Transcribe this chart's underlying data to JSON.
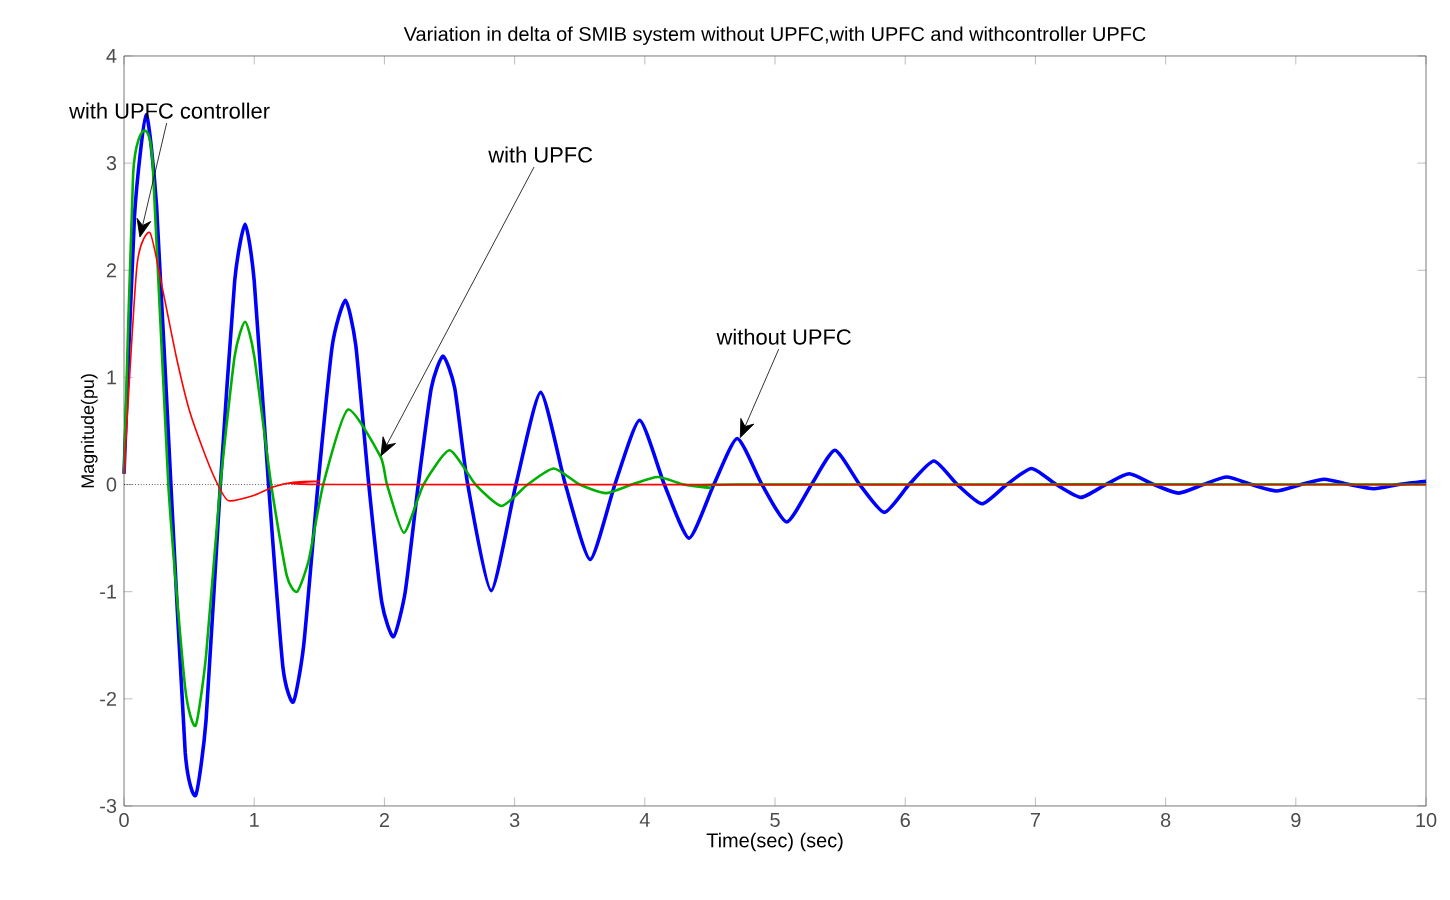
{
  "chart_data": {
    "type": "line",
    "title": "Variation in delta of SMIB system without UPFC,with UPFC and withcontroller UPFC",
    "xlabel": "Time(sec) (sec)",
    "ylabel": "Magnitude(pu)",
    "xlim": [
      0,
      10
    ],
    "ylim": [
      -3,
      4
    ],
    "xticks": [
      0,
      1,
      2,
      3,
      4,
      5,
      6,
      7,
      8,
      9,
      10
    ],
    "yticks": [
      -3,
      -2,
      -1,
      0,
      1,
      2,
      3,
      4
    ],
    "grid": false,
    "marker": "none",
    "line_style": "solid",
    "series": [
      {
        "color": "#0000ff",
        "x": [
          0,
          0.08,
          0.17,
          0.25,
          0.36,
          0.47,
          0.55,
          0.63,
          0.74,
          0.85,
          0.93,
          1.0,
          1.11,
          1.22,
          1.3,
          1.38,
          1.49,
          1.6,
          1.7,
          1.78,
          1.88,
          1.98,
          2.07,
          2.16,
          2.26,
          2.36,
          2.45,
          2.54,
          2.64,
          2.82,
          3.01,
          3.2,
          3.39,
          3.58,
          3.77,
          3.96,
          4.15,
          4.34,
          4.53,
          4.71,
          4.9,
          5.09,
          5.28,
          5.46,
          5.65,
          5.84,
          6.03,
          6.22,
          6.4,
          6.59,
          6.78,
          6.97,
          7.16,
          7.35,
          7.54,
          7.72,
          7.91,
          8.1,
          8.29,
          8.47,
          8.66,
          8.85,
          9.04,
          9.22,
          9.41,
          9.6,
          9.79,
          10
        ],
        "values": [
          0.1,
          2.5,
          3.45,
          2.6,
          0,
          -2.5,
          -2.9,
          -2.2,
          0,
          1.9,
          2.43,
          1.9,
          0,
          -1.7,
          -2.03,
          -1.5,
          0,
          1.3,
          1.72,
          1.3,
          0,
          -1.1,
          -1.42,
          -1.0,
          0,
          0.9,
          1.2,
          0.9,
          0,
          -0.99,
          0,
          0.86,
          0,
          -0.7,
          0,
          0.6,
          0,
          -0.5,
          0,
          0.43,
          0,
          -0.35,
          0,
          0.32,
          0,
          -0.26,
          0,
          0.22,
          0,
          -0.18,
          0,
          0.15,
          0,
          -0.12,
          0,
          0.1,
          0,
          -0.08,
          0,
          0.07,
          0,
          -0.06,
          0,
          0.05,
          0,
          -0.04,
          0,
          0.03
        ]
      },
      {
        "color": "#00b000",
        "x": [
          0,
          0.07,
          0.15,
          0.22,
          0.34,
          0.47,
          0.55,
          0.63,
          0.74,
          0.85,
          0.93,
          1.0,
          1.13,
          1.25,
          1.33,
          1.42,
          1.53,
          1.72,
          1.97,
          2.02,
          2.15,
          2.3,
          2.5,
          2.7,
          2.9,
          3.1,
          3.3,
          3.5,
          3.7,
          3.9,
          4.1,
          4.3,
          4.5,
          4.7,
          10
        ],
        "values": [
          0.1,
          2.9,
          3.3,
          3.0,
          0,
          -1.9,
          -2.25,
          -1.6,
          0,
          1.2,
          1.52,
          1.2,
          0,
          -0.85,
          -1.0,
          -0.7,
          0,
          0.7,
          0.26,
          0,
          -0.45,
          0,
          0.32,
          0,
          -0.2,
          0,
          0.15,
          0,
          -0.08,
          0,
          0.07,
          0,
          -0.03,
          0,
          0
        ]
      },
      {
        "color": "#ff0000",
        "x": [
          0,
          0.1,
          0.2,
          0.3,
          0.4,
          0.5,
          0.6,
          0.7,
          0.8,
          1.0,
          1.15,
          1.3,
          1.5,
          1.7,
          10
        ],
        "values": [
          0.1,
          2.05,
          2.35,
          1.8,
          1.2,
          0.7,
          0.35,
          0.05,
          -0.15,
          -0.1,
          -0.02,
          0.02,
          0.03,
          0,
          0
        ]
      }
    ],
    "ref_lines": [
      {
        "axis": "y",
        "value": 0,
        "color": "#000000"
      }
    ],
    "annotations": [
      {
        "text": "with UPFC controller",
        "x": 0.12,
        "y": 2.3
      },
      {
        "text": "with UPFC",
        "x": 1.97,
        "y": 0.26
      },
      {
        "text": "without UPFC",
        "x": 4.73,
        "y": 0.43
      }
    ]
  }
}
